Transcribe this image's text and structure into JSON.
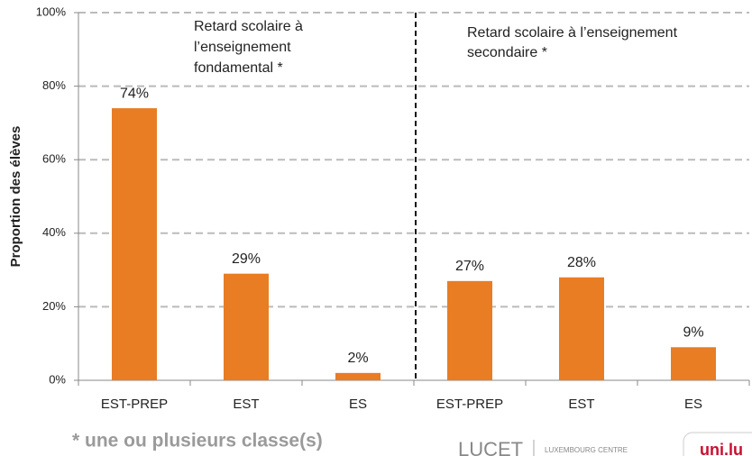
{
  "chart_data": {
    "type": "bar",
    "ylabel": "Proportion des élèves",
    "categories": [
      "EST-PREP",
      "EST",
      "ES",
      "EST-PREP",
      "EST",
      "ES"
    ],
    "values": [
      74,
      29,
      2,
      27,
      28,
      9
    ],
    "value_labels": [
      "74%",
      "29%",
      "2%",
      "27%",
      "28%",
      "9%"
    ],
    "color": "#e87d24",
    "ylim": [
      0,
      100
    ],
    "yticks": [
      {
        "value": 0,
        "label": "0%"
      },
      {
        "value": 20,
        "label": "20%"
      },
      {
        "value": 40,
        "label": "40%"
      },
      {
        "value": 60,
        "label": "60%"
      },
      {
        "value": 80,
        "label": "80%"
      },
      {
        "value": 100,
        "label": "100%"
      }
    ],
    "grid": true,
    "annotations": [
      [
        "Retard scolaire  à",
        "l’enseignement",
        "fondamental  *"
      ],
      [
        "Retard scolaire  à l’enseignement",
        "secondaire  *"
      ]
    ],
    "footnote": "* une ou plusieurs classe(s)",
    "logos": [
      "LUCET",
      "LUXEMBOURG CENTRE",
      "uni.lu"
    ]
  }
}
